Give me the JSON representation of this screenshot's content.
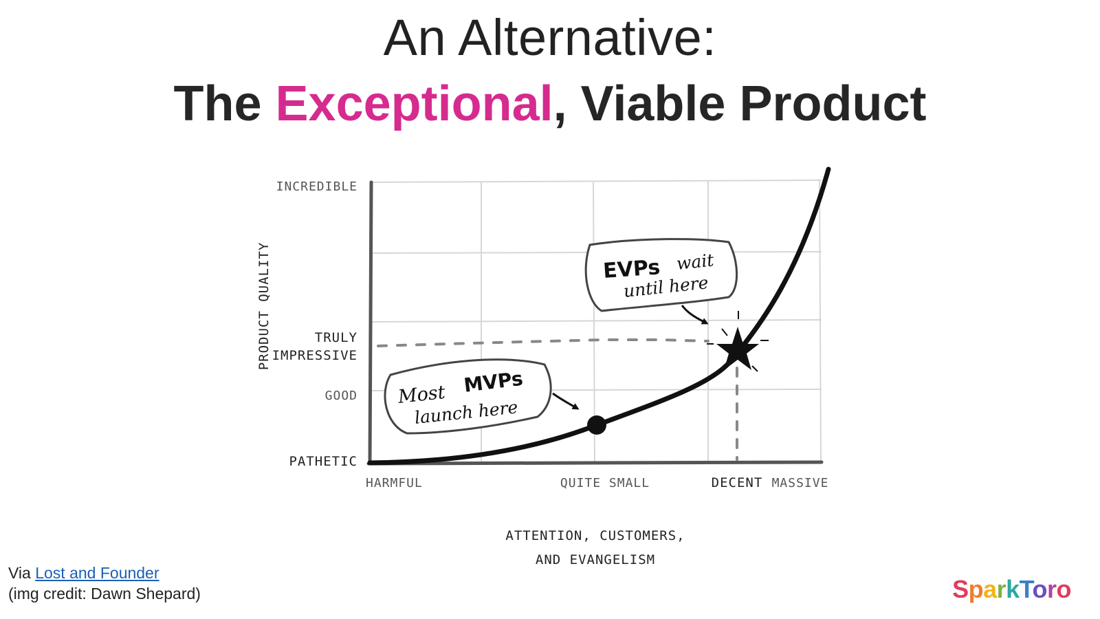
{
  "title": {
    "line1": "An Alternative:",
    "line2_prefix": "The ",
    "line2_accent": "Exceptional",
    "line2_suffix": ", Viable Product"
  },
  "diagram": {
    "y_axis_title": "PRODUCT QUALITY",
    "y_ticks": [
      "INCREDIBLE",
      "TRULY",
      "IMPRESSIVE",
      "GOOD",
      "PATHETIC"
    ],
    "x_ticks": [
      "HARMFUL",
      "QUITE SMALL",
      "DECENT",
      "MASSIVE"
    ],
    "x_axis_title_line1": "ATTENTION, CUSTOMERS,",
    "x_axis_title_line2": "AND EVANGELISM",
    "bubble_evp_bold": "EVPs",
    "bubble_evp_word": "wait",
    "bubble_evp_line2": "until here",
    "bubble_mvp_word": "Most",
    "bubble_mvp_bold": "MVPs",
    "bubble_mvp_line2": "launch here"
  },
  "credit": {
    "via_prefix": "Via ",
    "link_text": "Lost and Founder",
    "img_credit": "(img credit: Dawn Shepard)"
  },
  "logo": {
    "text": "SparkToro",
    "letters": [
      "S",
      "p",
      "a",
      "r",
      "k",
      "T",
      "o",
      "r",
      "o"
    ],
    "colors": [
      "#e23b5f",
      "#ef7d2f",
      "#f2b31c",
      "#7cb342",
      "#2ea8a0",
      "#3b82c4",
      "#6a4fc2",
      "#b4429c",
      "#e23b5f"
    ]
  },
  "colors": {
    "accent": "#d62b8e",
    "link": "#1a5fb4"
  }
}
